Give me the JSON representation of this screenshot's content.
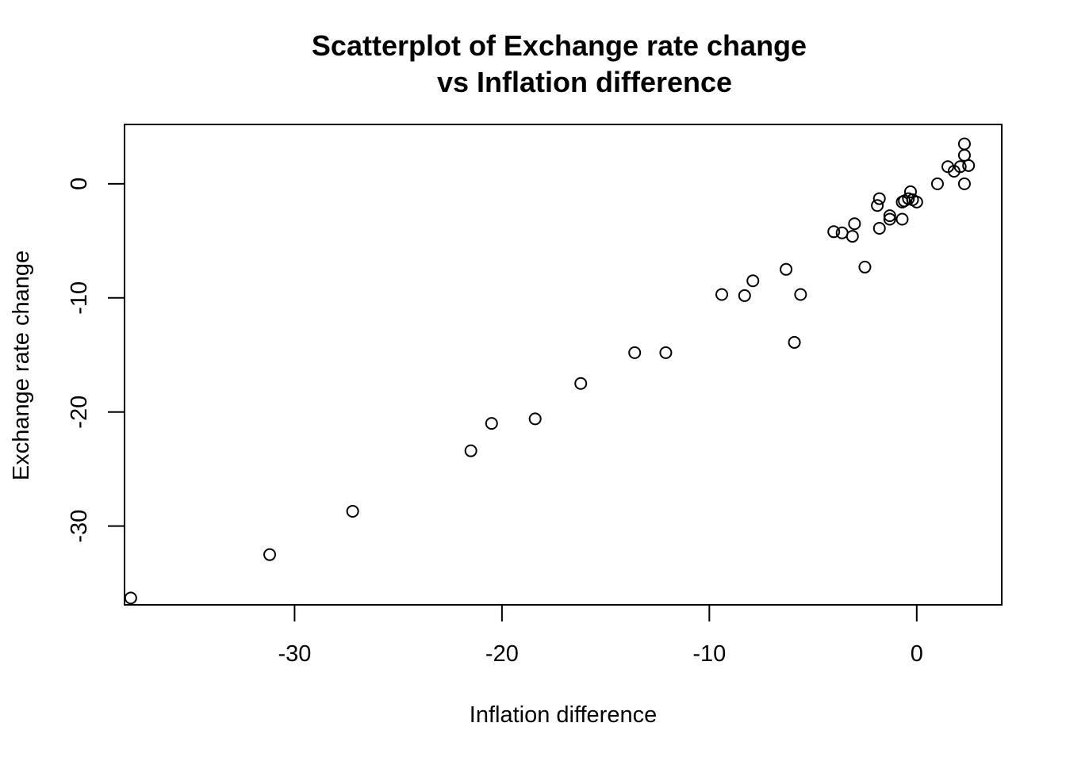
{
  "chart_data": {
    "type": "scatter",
    "title_line1": "Scatterplot of Exchange rate change",
    "title_line2": "vs Inflation difference",
    "xlabel": "Inflation difference",
    "ylabel": "Exchange rate change",
    "xlim": [
      -38.2,
      4.1
    ],
    "ylim": [
      -36.9,
      5.2
    ],
    "xticks": [
      -30,
      -20,
      -10,
      0
    ],
    "yticks": [
      -30,
      -20,
      -10,
      0
    ],
    "xtick_labels": [
      "-30",
      "-20",
      "-10",
      "0"
    ],
    "ytick_labels": [
      "-30",
      "-20",
      "-10",
      "0"
    ],
    "grid": false,
    "legend": "none",
    "points": [
      {
        "x": -37.9,
        "y": -36.3
      },
      {
        "x": -31.2,
        "y": -32.5
      },
      {
        "x": -27.2,
        "y": -28.7
      },
      {
        "x": -21.5,
        "y": -23.4
      },
      {
        "x": -20.5,
        "y": -21.0
      },
      {
        "x": -18.4,
        "y": -20.6
      },
      {
        "x": -16.2,
        "y": -17.5
      },
      {
        "x": -13.6,
        "y": -14.8
      },
      {
        "x": -12.1,
        "y": -14.8
      },
      {
        "x": -9.4,
        "y": -9.7
      },
      {
        "x": -8.3,
        "y": -9.8
      },
      {
        "x": -7.9,
        "y": -8.5
      },
      {
        "x": -6.3,
        "y": -7.5
      },
      {
        "x": -5.6,
        "y": -9.7
      },
      {
        "x": -5.9,
        "y": -13.9
      },
      {
        "x": -4.0,
        "y": -4.2
      },
      {
        "x": -3.6,
        "y": -4.3
      },
      {
        "x": -3.0,
        "y": -3.5
      },
      {
        "x": -3.1,
        "y": -4.6
      },
      {
        "x": -2.5,
        "y": -7.3
      },
      {
        "x": -1.8,
        "y": -1.3
      },
      {
        "x": -1.9,
        "y": -1.9
      },
      {
        "x": -1.8,
        "y": -3.9
      },
      {
        "x": -1.3,
        "y": -2.8
      },
      {
        "x": -1.3,
        "y": -3.1
      },
      {
        "x": -0.7,
        "y": -3.1
      },
      {
        "x": -0.7,
        "y": -1.6
      },
      {
        "x": -0.6,
        "y": -1.5
      },
      {
        "x": -0.4,
        "y": -1.3
      },
      {
        "x": -0.3,
        "y": -0.7
      },
      {
        "x": -0.2,
        "y": -1.4
      },
      {
        "x": 0.0,
        "y": -1.6
      },
      {
        "x": 1.0,
        "y": 0.0
      },
      {
        "x": 1.5,
        "y": 1.5
      },
      {
        "x": 1.8,
        "y": 1.1
      },
      {
        "x": 2.1,
        "y": 1.5
      },
      {
        "x": 2.3,
        "y": 2.5
      },
      {
        "x": 2.3,
        "y": 3.5
      },
      {
        "x": 2.5,
        "y": 1.6
      },
      {
        "x": 2.3,
        "y": 0.0
      }
    ]
  }
}
